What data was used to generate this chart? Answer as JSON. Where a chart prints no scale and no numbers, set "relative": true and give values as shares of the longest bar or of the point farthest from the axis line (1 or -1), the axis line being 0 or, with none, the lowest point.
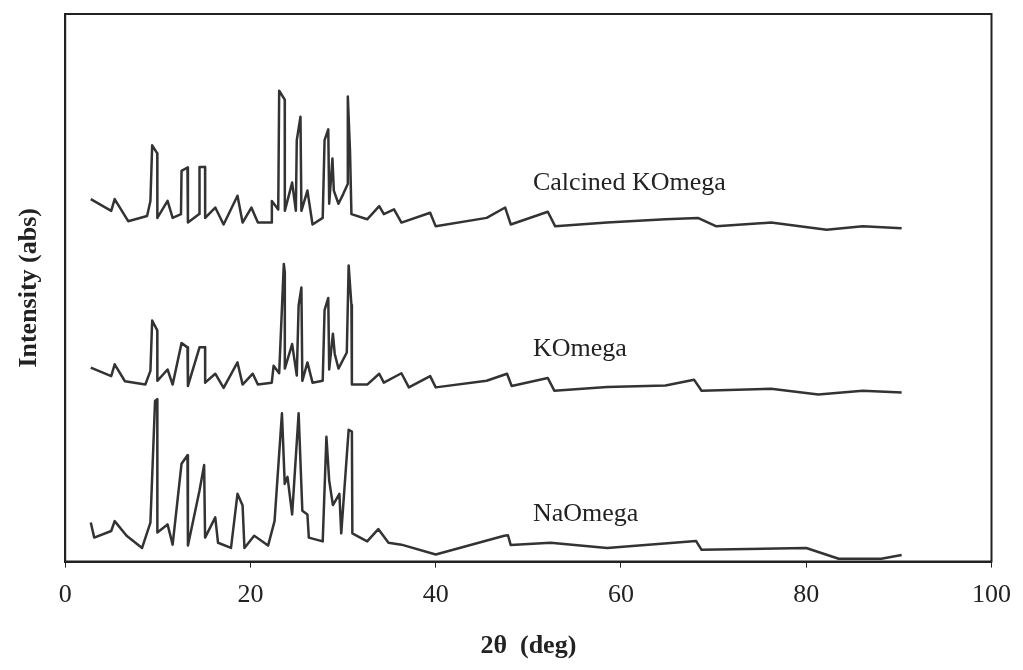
{
  "chart_data": {
    "type": "line",
    "xlabel": "2θ  (deg)",
    "ylabel": "Intensity (abs)",
    "relative": true,
    "xlim": [
      0,
      100
    ],
    "xticks": [
      0,
      20,
      40,
      60,
      80,
      100
    ],
    "tick_labels": "x",
    "grid": false,
    "legend": false,
    "marker": "none",
    "line_style": "solid",
    "series": [
      {
        "name": "Calcined KOmega",
        "color": "#333333",
        "x": [
          2.76,
          4.97,
          5.34,
          6.8,
          8.84,
          9.2,
          9.39,
          9.94,
          9.95,
          11.05,
          11.6,
          12.5,
          12.56,
          13.2,
          13.25,
          14.47,
          14.5,
          15.1,
          15.11,
          16.2,
          17.1,
          18.6,
          19.15,
          20.1,
          20.8,
          22.3,
          22.31,
          23.0,
          23.1,
          23.7,
          23.71,
          24.5,
          24.9,
          25.0,
          25.4,
          25.5,
          26.15,
          26.7,
          27.8,
          28.0,
          28.4,
          28.5,
          28.85,
          29.0,
          29.5,
          30.0,
          30.5,
          30.51,
          30.75,
          30.9,
          32.6,
          33.9,
          34.4,
          35.5,
          36.3,
          39.4,
          40.0,
          45.5,
          47.5,
          48.1,
          52.1,
          52.9,
          58.5,
          64.8,
          68.3,
          70.3,
          76.2,
          82.2,
          86.1,
          90.3
        ],
        "values": [
          0.77,
          0.745,
          0.77,
          0.723,
          0.734,
          0.766,
          0.884,
          0.867,
          0.73,
          0.766,
          0.73,
          0.738,
          0.83,
          0.837,
          0.72,
          0.738,
          0.838,
          0.838,
          0.73,
          0.752,
          0.716,
          0.777,
          0.72,
          0.752,
          0.72,
          0.72,
          0.766,
          0.748,
          1,
          0.981,
          0.745,
          0.805,
          0.745,
          0.895,
          0.945,
          0.745,
          0.788,
          0.716,
          0.73,
          0.895,
          0.918,
          0.76,
          0.856,
          0.788,
          0.76,
          0.78,
          0.802,
          0.988,
          0.87,
          0.738,
          0.727,
          0.755,
          0.738,
          0.748,
          0.72,
          0.741,
          0.712,
          0.73,
          0.752,
          0.716,
          0.743,
          0.712,
          0.72,
          0.727,
          0.73,
          0.712,
          0.72,
          0.705,
          0.712,
          0.708
        ]
      },
      {
        "name": "KOmega",
        "color": "#333333",
        "x": [
          2.76,
          4.97,
          5.34,
          6.45,
          8.65,
          9.2,
          9.39,
          9.94,
          9.95,
          11.05,
          11.6,
          12.56,
          13.2,
          13.25,
          14.5,
          15.1,
          15.11,
          16.2,
          17.1,
          18.6,
          19.15,
          20.25,
          20.8,
          22.3,
          22.5,
          23.1,
          23.6,
          23.7,
          23.71,
          24.5,
          25.0,
          25.2,
          25.5,
          25.6,
          26.15,
          26.7,
          27.8,
          28.0,
          28.4,
          28.5,
          28.9,
          29.1,
          29.5,
          30.4,
          30.6,
          30.9,
          30.95,
          32.6,
          33.9,
          34.4,
          36.3,
          37.1,
          39.4,
          40.0,
          45.5,
          47.7,
          48.2,
          52.1,
          52.8,
          58.5,
          64.8,
          67.9,
          68.7,
          76.2,
          81.3,
          86.1,
          90.3
        ],
        "values": [
          0.412,
          0.394,
          0.419,
          0.383,
          0.376,
          0.405,
          0.512,
          0.491,
          0.384,
          0.408,
          0.376,
          0.464,
          0.455,
          0.373,
          0.455,
          0.455,
          0.38,
          0.399,
          0.369,
          0.423,
          0.376,
          0.399,
          0.376,
          0.38,
          0.416,
          0.4,
          0.632,
          0.616,
          0.41,
          0.462,
          0.395,
          0.544,
          0.582,
          0.384,
          0.423,
          0.38,
          0.384,
          0.534,
          0.56,
          0.408,
          0.484,
          0.441,
          0.41,
          0.444,
          0.629,
          0.545,
          0.376,
          0.376,
          0.399,
          0.38,
          0.4,
          0.37,
          0.394,
          0.37,
          0.384,
          0.399,
          0.373,
          0.39,
          0.363,
          0.371,
          0.374,
          0.386,
          0.363,
          0.367,
          0.355,
          0.363,
          0.359
        ]
      },
      {
        "name": "NaOmega",
        "color": "#333333",
        "x": [
          2.76,
          3.13,
          4.97,
          5.34,
          6.63,
          8.3,
          9.2,
          9.7,
          9.94,
          9.95,
          11.05,
          11.6,
          12.56,
          13.2,
          13.25,
          14.5,
          15.0,
          15.1,
          16.2,
          16.5,
          17.9,
          18.6,
          19.15,
          19.35,
          20.4,
          21.9,
          22.6,
          23.4,
          23.7,
          24.0,
          24.5,
          25.2,
          25.6,
          26.15,
          26.3,
          27.8,
          28.2,
          28.5,
          28.9,
          29.6,
          29.8,
          30.6,
          30.95,
          31.0,
          32.6,
          33.8,
          34.9,
          36.3,
          40.0,
          47.4,
          47.8,
          48.1,
          52.4,
          58.5,
          68.1,
          68.7,
          80.0,
          83.5,
          88.1,
          90.3
        ],
        "values": [
          0.083,
          0.051,
          0.065,
          0.086,
          0.055,
          0.029,
          0.083,
          0.341,
          0.345,
          0.062,
          0.079,
          0.036,
          0.208,
          0.226,
          0.034,
          0.151,
          0.205,
          0.051,
          0.094,
          0.04,
          0.029,
          0.144,
          0.119,
          0.029,
          0.055,
          0.034,
          0.086,
          0.315,
          0.165,
          0.18,
          0.1,
          0.315,
          0.108,
          0.1,
          0.051,
          0.043,
          0.265,
          0.172,
          0.12,
          0.144,
          0.06,
          0.28,
          0.276,
          0.06,
          0.043,
          0.069,
          0.04,
          0.036,
          0.015,
          0.055,
          0.056,
          0.035,
          0.04,
          0.029,
          0.044,
          0.025,
          0.029,
          0.006,
          0.006,
          0.014
        ]
      }
    ]
  }
}
